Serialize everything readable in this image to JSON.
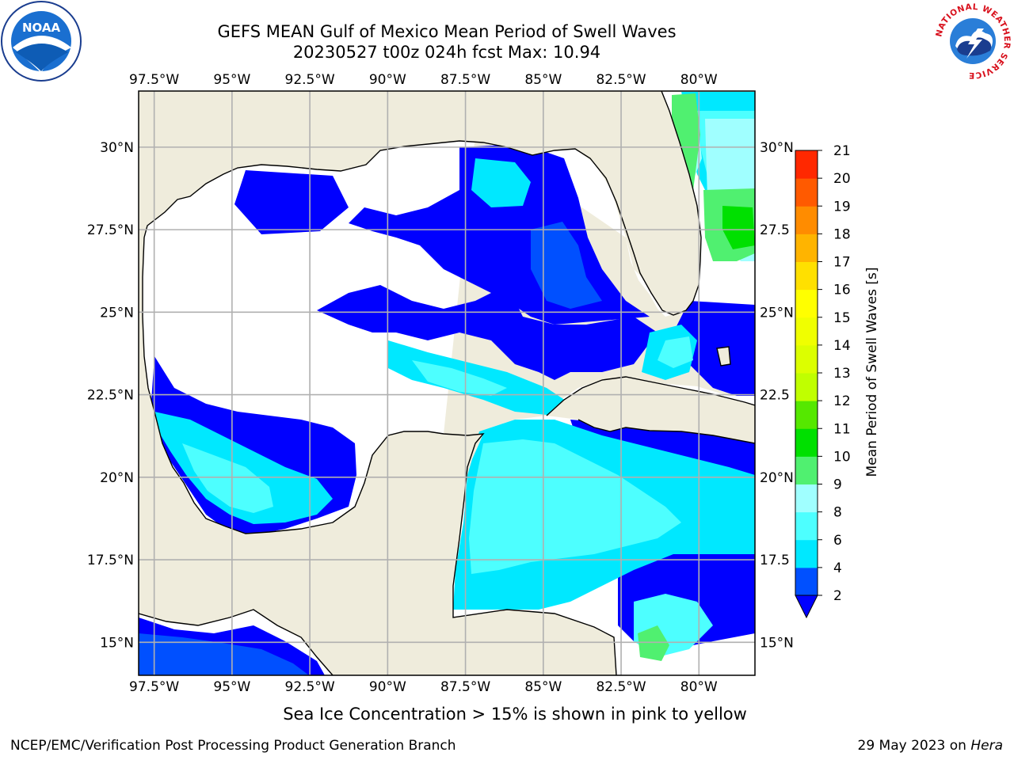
{
  "header": {
    "title_line1": "GEFS MEAN Gulf of Mexico Mean Period of Swell Waves",
    "title_line2": "20230527 t00z 024h fcst   Max: 10.94"
  },
  "logos": {
    "left": "NOAA",
    "right_ring_text": "NATIONAL WEATHER SERVICE"
  },
  "map": {
    "extent": {
      "lon_min": -98,
      "lon_max": -78.2,
      "lat_min": 14,
      "lat_max": 31.7
    },
    "lon_ticks": [
      "97.5°W",
      "95°W",
      "92.5°W",
      "90°W",
      "87.5°W",
      "85°W",
      "82.5°W",
      "80°W"
    ],
    "lon_values": [
      -97.5,
      -95,
      -92.5,
      -90,
      -87.5,
      -85,
      -82.5,
      -80
    ],
    "lat_ticks_left": [
      "30°N",
      "27.5°N",
      "25°N",
      "22.5°N",
      "20°N",
      "17.5°N",
      "15°N"
    ],
    "lat_ticks_right": [
      "30°N",
      "27.5",
      "25°N",
      "22.5",
      "20°N",
      "17.5",
      "15°N"
    ],
    "lat_values": [
      30,
      27.5,
      25,
      22.5,
      20,
      17.5,
      15
    ],
    "land_color": "#efecdc",
    "grid_color": "#b0b0b0"
  },
  "colorbar": {
    "label": "Mean Period of Swell Waves [s]",
    "levels": [
      "2",
      "4",
      "6",
      "8",
      "9",
      "10",
      "11",
      "12",
      "13",
      "14",
      "15",
      "16",
      "17",
      "18",
      "19",
      "20",
      "21"
    ],
    "colors": [
      "#0050ff",
      "#00e8ff",
      "#4dffff",
      "#a0ffff",
      "#50f070",
      "#00e000",
      "#55e800",
      "#c0ff00",
      "#dcff00",
      "#f0ff00",
      "#ffff00",
      "#ffe000",
      "#ffb400",
      "#ff8c00",
      "#ff5a00",
      "#ff2800"
    ],
    "extend_color": "#0000ff"
  },
  "footer": {
    "note": "Sea Ice Concentration > 15% is shown in pink to yellow",
    "credit": "NCEP/EMC/Verification Post Processing Product Generation Branch",
    "date": "29 May 2023 on",
    "host": "Hera"
  }
}
